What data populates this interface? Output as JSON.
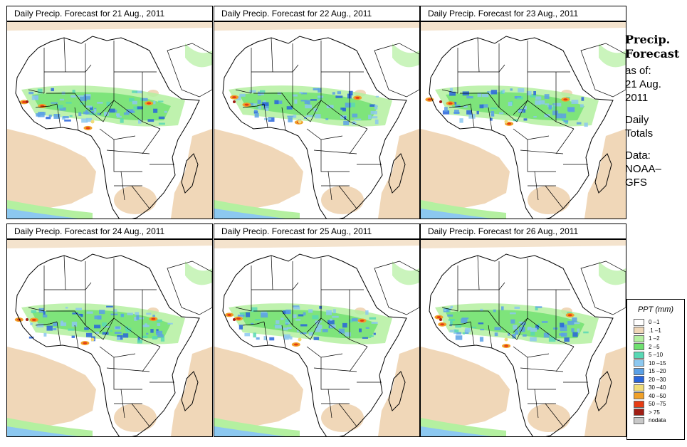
{
  "panels": [
    {
      "title": "Daily Precip. Forecast for  21 Aug., 2011"
    },
    {
      "title": "Daily Precip. Forecast for  22 Aug., 2011"
    },
    {
      "title": "Daily Precip. Forecast for  23 Aug., 2011"
    },
    {
      "title": "Daily Precip. Forecast for  24 Aug., 2011"
    },
    {
      "title": "Daily Precip. Forecast for  25 Aug., 2011"
    },
    {
      "title": "Daily Precip. Forecast for  26 Aug., 2011"
    }
  ],
  "side": {
    "heading1": "Precip.",
    "heading2": "Forecast",
    "asof1": "as of:",
    "asof2": "21 Aug.",
    "asof3": "2011",
    "daily1": "Daily",
    "daily2": "Totals",
    "data1": "Data:",
    "data2": "NOAA–",
    "data3": "GFS"
  },
  "legend": {
    "title": "PPT (mm)",
    "items": [
      {
        "label": "0 –1",
        "color": "#ffffff"
      },
      {
        "label": ".1 –1",
        "color": "#f0d7b8"
      },
      {
        "label": "1 –2",
        "color": "#b4f0a0"
      },
      {
        "label": "2 –5",
        "color": "#6ee06e"
      },
      {
        "label": "5 –10",
        "color": "#58d8b4"
      },
      {
        "label": "10 –15",
        "color": "#8cc8f0"
      },
      {
        "label": "15 –20",
        "color": "#5aa0e6"
      },
      {
        "label": "20 –30",
        "color": "#2864dc"
      },
      {
        "label": "30 –40",
        "color": "#f0dc78"
      },
      {
        "label": "40 –50",
        "color": "#f0a028"
      },
      {
        "label": "50 –75",
        "color": "#e63c14"
      },
      {
        "label": "> 75",
        "color": "#a01e14"
      },
      {
        "label": "nodata",
        "color": "#c8c8c8"
      }
    ]
  }
}
